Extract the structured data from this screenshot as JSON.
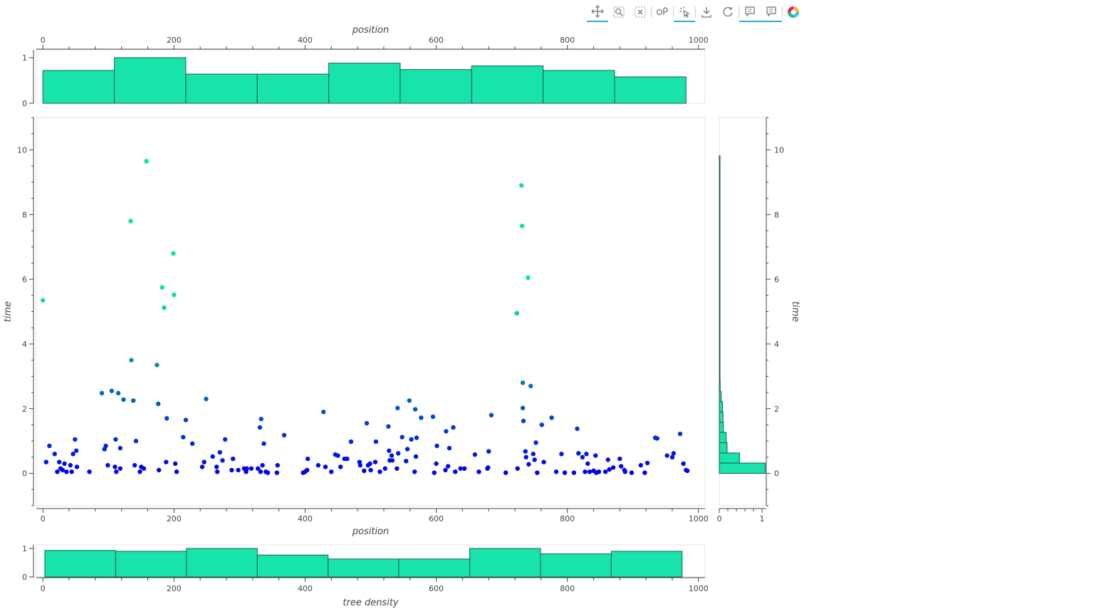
{
  "toolbar": {
    "tools": [
      {
        "name": "pan-tool-icon",
        "active": true
      },
      {
        "name": "box-zoom-icon",
        "active": false
      },
      {
        "name": "box-select-icon",
        "active": false
      },
      {
        "name": "lasso-select-icon",
        "active": false
      },
      {
        "name": "tap-tool-icon",
        "active": true
      },
      {
        "name": "save-icon",
        "active": false
      },
      {
        "name": "reset-icon",
        "active": false
      },
      {
        "name": "hover-tool-icon",
        "active": true
      },
      {
        "name": "hover-tool-icon-2",
        "active": true
      },
      {
        "name": "bokeh-logo",
        "active": false
      }
    ],
    "accent": "#26aae1"
  },
  "chart_data": [
    {
      "id": "top-histogram",
      "type": "bar",
      "xlabel": "position",
      "xlim": [
        -10,
        1010
      ],
      "ylim": [
        0,
        1.0
      ],
      "xticks": [
        0,
        200,
        400,
        600,
        800,
        1000
      ],
      "yticks": [
        0,
        1
      ],
      "bin_edges": [
        0,
        109,
        218,
        327,
        436,
        545,
        654,
        763,
        872,
        981
      ],
      "values": [
        0.72,
        1.0,
        0.64,
        0.64,
        0.88,
        0.74,
        0.82,
        0.72,
        0.58
      ],
      "fill": "#17e3aa",
      "stroke": "#1b5e55"
    },
    {
      "id": "main-scatter",
      "type": "scatter",
      "xlabel": "position",
      "ylabel": "time",
      "xlim": [
        -10,
        1010
      ],
      "ylim": [
        -1,
        11
      ],
      "xticks": [
        0,
        200,
        400,
        600,
        800,
        1000
      ],
      "yticks": [
        0,
        2,
        4,
        6,
        8,
        10
      ],
      "colors": {
        "low": "#0000ee",
        "high": "#00ee88"
      },
      "points": [
        [
          0,
          5.35
        ],
        [
          5,
          0.35
        ],
        [
          10,
          0.85
        ],
        [
          18,
          0.6
        ],
        [
          22,
          0.05
        ],
        [
          25,
          0.35
        ],
        [
          27,
          0.15
        ],
        [
          30,
          0.1
        ],
        [
          33,
          0.3
        ],
        [
          36,
          0.05
        ],
        [
          42,
          0.25
        ],
        [
          44,
          0.05
        ],
        [
          46,
          0.6
        ],
        [
          49,
          1.05
        ],
        [
          51,
          0.7
        ],
        [
          52,
          0.2
        ],
        [
          71,
          0.05
        ],
        [
          90,
          2.48
        ],
        [
          94,
          0.75
        ],
        [
          96,
          0.85
        ],
        [
          99,
          0.25
        ],
        [
          105,
          2.55
        ],
        [
          110,
          0.2
        ],
        [
          111,
          1.05
        ],
        [
          112,
          0.05
        ],
        [
          115,
          2.48
        ],
        [
          118,
          0.15
        ],
        [
          118,
          0.78
        ],
        [
          123,
          2.28
        ],
        [
          134,
          7.8
        ],
        [
          135,
          3.5
        ],
        [
          138,
          2.25
        ],
        [
          140,
          0.25
        ],
        [
          142,
          1.0
        ],
        [
          148,
          0.05
        ],
        [
          150,
          0.2
        ],
        [
          154,
          0.15
        ],
        [
          158,
          9.65
        ],
        [
          174,
          3.35
        ],
        [
          176,
          2.15
        ],
        [
          177,
          0.1
        ],
        [
          182,
          5.75
        ],
        [
          185,
          5.12
        ],
        [
          188,
          0.35
        ],
        [
          189,
          1.7
        ],
        [
          199,
          6.8
        ],
        [
          200,
          5.52
        ],
        [
          202,
          0.3
        ],
        [
          204,
          0.05
        ],
        [
          214,
          1.12
        ],
        [
          218,
          1.65
        ],
        [
          228,
          0.92
        ],
        [
          243,
          0.2
        ],
        [
          246,
          0.35
        ],
        [
          249,
          2.3
        ],
        [
          259,
          0.52
        ],
        [
          265,
          0.2
        ],
        [
          266,
          0.05
        ],
        [
          270,
          0.65
        ],
        [
          274,
          0.4
        ],
        [
          278,
          1.05
        ],
        [
          288,
          0.1
        ],
        [
          290,
          0.45
        ],
        [
          298,
          0.1
        ],
        [
          307,
          0.15
        ],
        [
          310,
          0.05
        ],
        [
          311,
          0.15
        ],
        [
          318,
          0.15
        ],
        [
          328,
          0.15
        ],
        [
          331,
          1.42
        ],
        [
          332,
          0.05
        ],
        [
          333,
          1.68
        ],
        [
          335,
          0.25
        ],
        [
          337,
          0.92
        ],
        [
          340,
          0.05
        ],
        [
          343,
          0.02
        ],
        [
          357,
          0.02
        ],
        [
          358,
          0.25
        ],
        [
          368,
          1.18
        ],
        [
          397,
          0.02
        ],
        [
          400,
          0.05
        ],
        [
          403,
          0.1
        ],
        [
          404,
          0.45
        ],
        [
          420,
          0.25
        ],
        [
          428,
          1.9
        ],
        [
          431,
          0.2
        ],
        [
          440,
          0.05
        ],
        [
          446,
          0.58
        ],
        [
          450,
          0.55
        ],
        [
          454,
          0.2
        ],
        [
          460,
          0.45
        ],
        [
          464,
          0.45
        ],
        [
          470,
          0.98
        ],
        [
          483,
          0.35
        ],
        [
          484,
          0.25
        ],
        [
          490,
          0.08
        ],
        [
          494,
          1.55
        ],
        [
          496,
          0.25
        ],
        [
          499,
          0.3
        ],
        [
          500,
          0.1
        ],
        [
          507,
          0.35
        ],
        [
          508,
          0.98
        ],
        [
          514,
          0.05
        ],
        [
          522,
          0.15
        ],
        [
          527,
          1.45
        ],
        [
          528,
          0.7
        ],
        [
          529,
          0.4
        ],
        [
          532,
          0.55
        ],
        [
          533,
          0.4
        ],
        [
          540,
          0.15
        ],
        [
          541,
          2.02
        ],
        [
          542,
          0.62
        ],
        [
          548,
          1.12
        ],
        [
          554,
          0.38
        ],
        [
          556,
          0.75
        ],
        [
          559,
          2.25
        ],
        [
          562,
          1.05
        ],
        [
          567,
          0.05
        ],
        [
          568,
          1.98
        ],
        [
          569,
          0.52
        ],
        [
          570,
          1.1
        ],
        [
          577,
          1.72
        ],
        [
          595,
          1.75
        ],
        [
          597,
          0.02
        ],
        [
          600,
          0.3
        ],
        [
          601,
          0.85
        ],
        [
          614,
          0.1
        ],
        [
          615,
          1.3
        ],
        [
          618,
          0.22
        ],
        [
          620,
          0.78
        ],
        [
          626,
          1.42
        ],
        [
          629,
          0.05
        ],
        [
          637,
          0.15
        ],
        [
          643,
          0.15
        ],
        [
          659,
          0.58
        ],
        [
          665,
          0.05
        ],
        [
          678,
          0.15
        ],
        [
          679,
          0.18
        ],
        [
          680,
          0.68
        ],
        [
          684,
          1.8
        ],
        [
          706,
          0.02
        ],
        [
          723,
          4.95
        ],
        [
          724,
          0.15
        ],
        [
          730,
          8.9
        ],
        [
          731,
          7.65
        ],
        [
          732,
          2.8
        ],
        [
          732,
          2.02
        ],
        [
          733,
          1.62
        ],
        [
          736,
          0.68
        ],
        [
          737,
          0.5
        ],
        [
          740,
          6.05
        ],
        [
          741,
          0.28
        ],
        [
          744,
          2.7
        ],
        [
          748,
          0.6
        ],
        [
          750,
          0.42
        ],
        [
          752,
          0.95
        ],
        [
          754,
          0.02
        ],
        [
          761,
          1.5
        ],
        [
          764,
          0.35
        ],
        [
          776,
          1.72
        ],
        [
          783,
          0.05
        ],
        [
          791,
          0.6
        ],
        [
          796,
          0.02
        ],
        [
          810,
          0.02
        ],
        [
          815,
          1.38
        ],
        [
          817,
          0.62
        ],
        [
          823,
          0.5
        ],
        [
          827,
          0.05
        ],
        [
          829,
          0.6
        ],
        [
          831,
          0.3
        ],
        [
          834,
          0.05
        ],
        [
          840,
          0.08
        ],
        [
          843,
          0.55
        ],
        [
          844,
          0.02
        ],
        [
          848,
          0.05
        ],
        [
          858,
          0.05
        ],
        [
          862,
          0.42
        ],
        [
          864,
          0.12
        ],
        [
          870,
          0.18
        ],
        [
          880,
          0.45
        ],
        [
          882,
          0.22
        ],
        [
          887,
          0.1
        ],
        [
          888,
          0.05
        ],
        [
          898,
          0.02
        ],
        [
          912,
          0.25
        ],
        [
          918,
          0.02
        ],
        [
          922,
          0.32
        ],
        [
          934,
          1.1
        ],
        [
          937,
          1.08
        ],
        [
          952,
          0.55
        ],
        [
          960,
          0.5
        ],
        [
          962,
          0.62
        ],
        [
          972,
          1.22
        ],
        [
          977,
          0.3
        ],
        [
          981,
          0.1
        ],
        [
          983,
          0.08
        ]
      ]
    },
    {
      "id": "right-histogram",
      "type": "bar",
      "orientation": "horizontal",
      "ylabel": "time",
      "ylim": [
        -1,
        11
      ],
      "xlim": [
        0,
        1.1
      ],
      "yticks": [
        0,
        2,
        4,
        6,
        8,
        10
      ],
      "xticks": [
        0,
        1
      ],
      "bin_edges": [
        0,
        0.32,
        0.63,
        0.95,
        1.27,
        1.58,
        1.9,
        2.22,
        2.53,
        2.85,
        3.17,
        3.48,
        3.8,
        4.12,
        4.43,
        4.75,
        5.07,
        5.38,
        5.7,
        6.02,
        6.33,
        6.65,
        6.97,
        7.28,
        7.6,
        7.92,
        8.23,
        8.55,
        8.87,
        9.18,
        9.5,
        9.82
      ],
      "values": [
        1.0,
        0.44,
        0.17,
        0.15,
        0.09,
        0.08,
        0.07,
        0.04,
        0.02,
        0.01,
        0.01,
        0.008,
        0.006,
        0.006,
        0.006,
        0.01,
        0.012,
        0.008,
        0.008,
        0.008,
        0.012,
        0.008,
        0.006,
        0.006,
        0.01,
        0.008,
        0.006,
        0.01,
        0.006,
        0.008,
        0.01
      ],
      "fill": "#17e3aa",
      "stroke": "#1b5e55"
    },
    {
      "id": "bottom-histogram",
      "type": "bar",
      "xlabel": "tree density",
      "xlim": [
        -10,
        1010
      ],
      "ylim": [
        0,
        1.0
      ],
      "xticks": [
        0,
        200,
        400,
        600,
        800,
        1000
      ],
      "yticks": [
        0,
        1
      ],
      "bin_edges": [
        3,
        111,
        219,
        327,
        435,
        543,
        651,
        759,
        867,
        975
      ],
      "values": [
        0.93,
        0.9,
        1.0,
        0.77,
        0.63,
        0.63,
        1.0,
        0.81,
        0.9
      ],
      "fill": "#17e3aa",
      "stroke": "#1b5e55"
    }
  ]
}
